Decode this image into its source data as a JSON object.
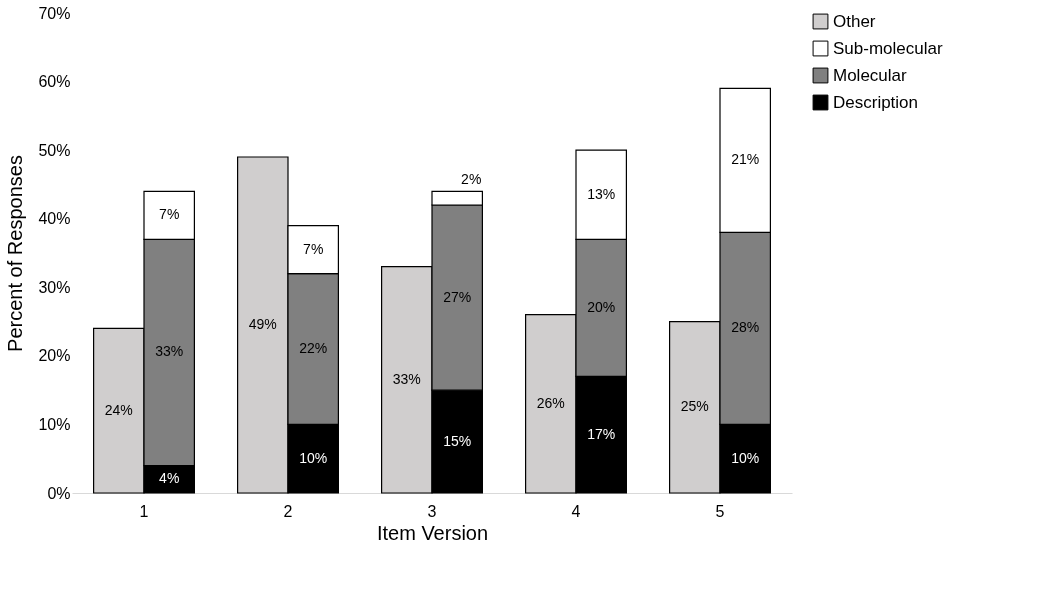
{
  "chart_data": {
    "type": "bar",
    "xlabel": "Item Version",
    "ylabel": "Percent of Responses",
    "categories": [
      "1",
      "2",
      "3",
      "4",
      "5"
    ],
    "series": [
      {
        "name": "Other",
        "color": "#d0cece",
        "values": [
          24,
          49,
          33,
          26,
          25
        ],
        "value_labels": [
          "24%",
          "49%",
          "33%",
          "26%",
          "25%"
        ]
      },
      {
        "name": "Description",
        "color": "#000000",
        "base": [
          0,
          0,
          0,
          0,
          0
        ],
        "values": [
          4,
          10,
          15,
          17,
          10
        ],
        "value_labels": [
          "4%",
          "10%",
          "15%",
          "17%",
          "10%"
        ]
      },
      {
        "name": "Molecular",
        "color": "#808080",
        "base": [
          4,
          10,
          15,
          17,
          10
        ],
        "values": [
          33,
          22,
          27,
          20,
          28
        ],
        "value_labels": [
          "33%",
          "22%",
          "27%",
          "20%",
          "28%"
        ]
      },
      {
        "name": "Sub-molecular",
        "color": "#ffffff",
        "base": [
          37,
          32,
          42,
          37,
          38
        ],
        "values": [
          7,
          7,
          2,
          13,
          21
        ],
        "value_labels": [
          "7%",
          "7%",
          "2%",
          "13%",
          "21%"
        ]
      }
    ],
    "ylim": [
      0,
      70
    ],
    "yticks": [
      {
        "value": 0,
        "label": "0%"
      },
      {
        "value": 10,
        "label": "10%"
      },
      {
        "value": 20,
        "label": "20%"
      },
      {
        "value": 30,
        "label": "30%"
      },
      {
        "value": 40,
        "label": "40%"
      },
      {
        "value": 50,
        "label": "50%"
      },
      {
        "value": 60,
        "label": "60%"
      },
      {
        "value": 70,
        "label": "70%"
      }
    ],
    "grid": false,
    "legend": "right"
  }
}
